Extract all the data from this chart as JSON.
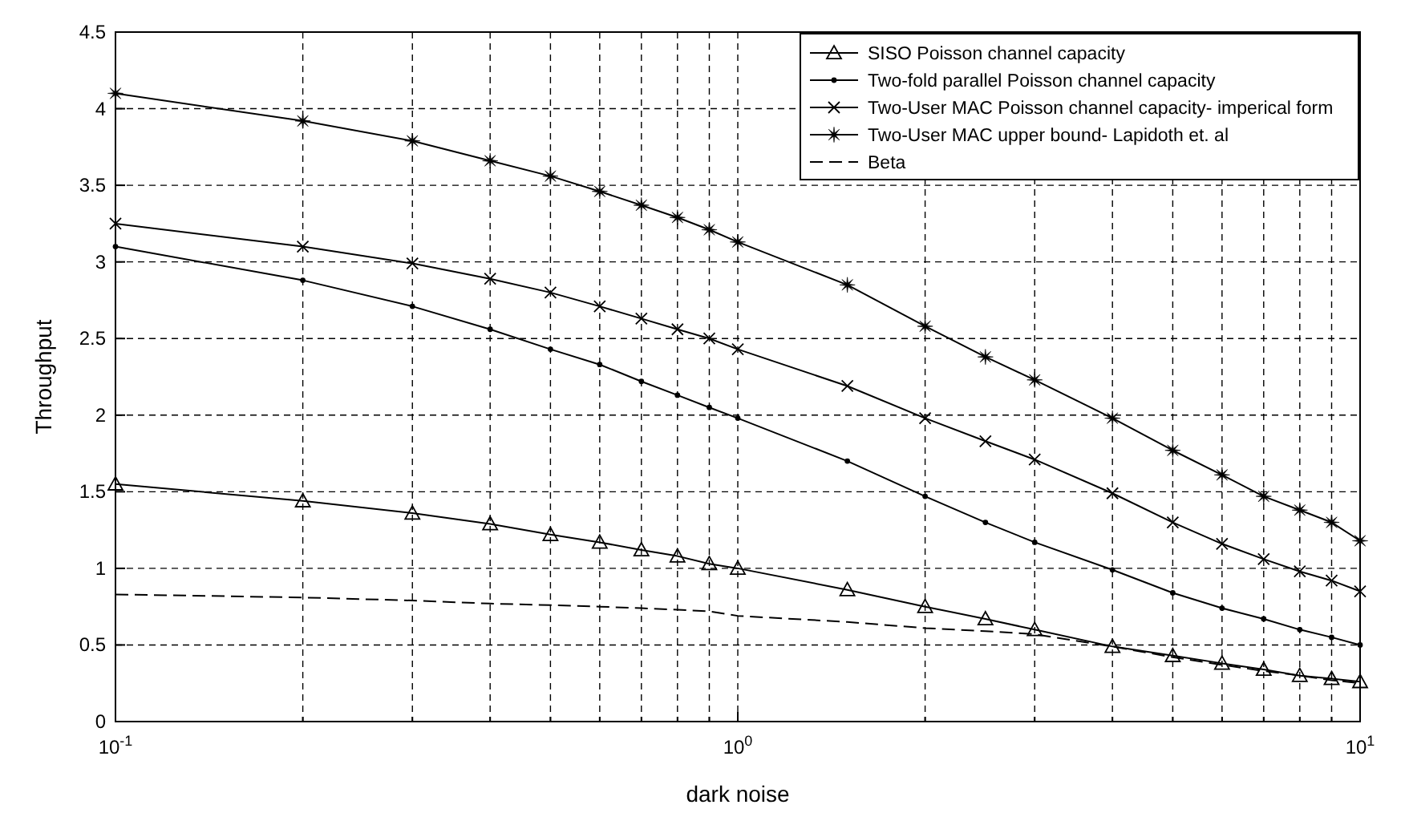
{
  "chart_data": {
    "type": "line",
    "xlabel": "dark noise",
    "ylabel": "Throughput",
    "log": "x",
    "x": [
      0.1,
      0.2,
      0.3,
      0.4,
      0.5,
      0.6,
      0.7,
      0.8,
      0.9,
      1,
      1.5,
      2,
      2.5,
      3,
      4,
      5,
      6,
      7,
      8,
      9,
      10
    ],
    "xlim": [
      0.1,
      10
    ],
    "xticks": [
      {
        "value": 0.1,
        "label": "10$^{-1}$"
      },
      {
        "value": 0.2,
        "label": null
      },
      {
        "value": 0.3,
        "label": null
      },
      {
        "value": 0.4,
        "label": null
      },
      {
        "value": 0.5,
        "label": null
      },
      {
        "value": 0.6,
        "label": null
      },
      {
        "value": 0.7,
        "label": null
      },
      {
        "value": 0.8,
        "label": null
      },
      {
        "value": 0.9,
        "label": null
      },
      {
        "value": 1,
        "label": "10$^{0}$"
      },
      {
        "value": 2,
        "label": null
      },
      {
        "value": 3,
        "label": null
      },
      {
        "value": 4,
        "label": null
      },
      {
        "value": 5,
        "label": null
      },
      {
        "value": 6,
        "label": null
      },
      {
        "value": 7,
        "label": null
      },
      {
        "value": 8,
        "label": null
      },
      {
        "value": 9,
        "label": null
      },
      {
        "value": 10,
        "label": "10$^{1}$"
      }
    ],
    "ylim": [
      0,
      4.5
    ],
    "yticks": [
      0,
      0.5,
      1,
      1.5,
      2,
      2.5,
      3,
      3.5,
      4,
      4.5
    ],
    "grid": true,
    "legend": "top right",
    "line_style": "solid",
    "series": [
      {
        "name": "SISO Poisson channel capacity",
        "color": "#000000",
        "marker": "triangle",
        "values": [
          1.55,
          1.44,
          1.36,
          1.29,
          1.22,
          1.17,
          1.12,
          1.08,
          1.03,
          1.0,
          0.86,
          0.75,
          0.67,
          0.6,
          0.49,
          0.43,
          0.38,
          0.34,
          0.3,
          0.28,
          0.26
        ]
      },
      {
        "name": "Two-fold parallel Poisson channel capacity",
        "color": "#000000",
        "marker": "circle",
        "values": [
          3.1,
          2.88,
          2.71,
          2.56,
          2.43,
          2.33,
          2.22,
          2.13,
          2.05,
          1.98,
          1.7,
          1.47,
          1.3,
          1.17,
          0.99,
          0.84,
          0.74,
          0.67,
          0.6,
          0.55,
          0.5
        ]
      },
      {
        "name": "Two-User MAC Poisson channel capacity- imperical form",
        "color": "#000000",
        "marker": "cross",
        "values": [
          3.25,
          3.1,
          2.99,
          2.89,
          2.8,
          2.71,
          2.63,
          2.56,
          2.5,
          2.43,
          2.19,
          1.98,
          1.83,
          1.71,
          1.49,
          1.3,
          1.16,
          1.06,
          0.98,
          0.92,
          0.85
        ]
      },
      {
        "name": "Two-User MAC upper bound- Lapidoth et. al",
        "color": "#000000",
        "marker": "star",
        "values": [
          4.1,
          3.92,
          3.79,
          3.66,
          3.56,
          3.46,
          3.37,
          3.29,
          3.21,
          3.13,
          2.85,
          2.58,
          2.38,
          2.23,
          1.98,
          1.77,
          1.61,
          1.47,
          1.38,
          1.3,
          1.18
        ]
      },
      {
        "name": "Beta",
        "color": "#000000",
        "marker": "none",
        "line_style": "dashed",
        "values": [
          0.83,
          0.81,
          0.79,
          0.77,
          0.76,
          0.75,
          0.74,
          0.73,
          0.72,
          0.69,
          0.65,
          0.61,
          0.59,
          0.57,
          0.49,
          0.42,
          0.37,
          0.33,
          0.3,
          0.27,
          0.25
        ]
      }
    ]
  }
}
